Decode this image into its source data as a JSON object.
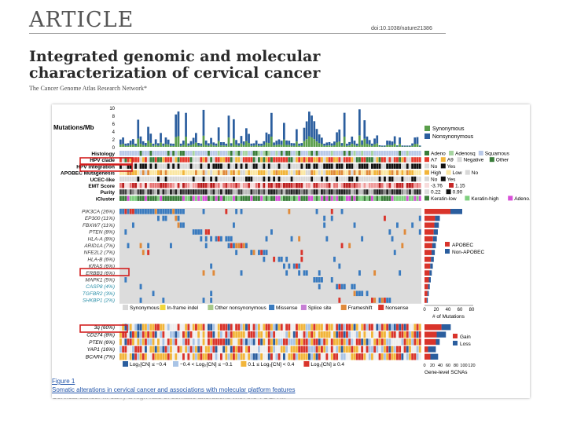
{
  "header": {
    "article_label": "ARTICLE",
    "doi": "doi:10.1038/nature21386",
    "title_line1": "Integrated genomic and molecular",
    "title_line2": "characterization of cervical cancer",
    "authors": "The Cancer Genome Atlas Research Network*"
  },
  "figure": {
    "figure_label": "Figure 1",
    "caption": "Somatic alterations in cervical cancer and associations with molecular platform features",
    "panel_top": {
      "ylabel": "Mutations/Mb",
      "yticks": [
        "10",
        "8",
        "6",
        "4",
        "2",
        "0"
      ],
      "legend": [
        {
          "label": "Synonymous",
          "color": "#5a9e4b"
        },
        {
          "label": "Nonsynonymous",
          "color": "#2b5e9e"
        }
      ]
    },
    "tracks": [
      {
        "label": "Histology",
        "legend": [
          {
            "label": "Adeno",
            "color": "#3a7d3a"
          },
          {
            "label": "Adenosq",
            "color": "#a6d4a0"
          },
          {
            "label": "Squamous",
            "color": "#b9c9e8"
          }
        ]
      },
      {
        "label": "HPV clade",
        "legend": [
          {
            "label": "A7",
            "color": "#e63b2e"
          },
          {
            "label": "A9",
            "color": "#f2b53a"
          },
          {
            "label": "Negative",
            "color": "#d8d8d8"
          },
          {
            "label": "Other",
            "color": "#3a7d3a"
          }
        ]
      },
      {
        "label": "HPV integration",
        "legend": [
          {
            "label": "No",
            "color": "#d8d8d8"
          },
          {
            "label": "Yes",
            "color": "#111111"
          }
        ]
      },
      {
        "label": "APOBEC Mutagenesis",
        "legend": [
          {
            "label": "High",
            "color": "#f2b53a"
          },
          {
            "label": "Low",
            "color": "#fbe7a3"
          },
          {
            "label": "No",
            "color": "#d8d8d8"
          }
        ]
      },
      {
        "label": "UCEC-like",
        "legend": [
          {
            "label": "No",
            "color": "#d8d8d8"
          },
          {
            "label": "Yes",
            "color": "#111111"
          }
        ]
      },
      {
        "label": "EMT Score",
        "legend": [
          {
            "label": "-3.76",
            "color": "#f7dcdc"
          },
          {
            "label": "1.15",
            "color": "#c62828"
          }
        ]
      },
      {
        "label": "Purity",
        "legend": [
          {
            "label": "0.22",
            "color": "#dddddd"
          },
          {
            "label": "0.90",
            "color": "#111111"
          }
        ]
      },
      {
        "label": "iCluster",
        "legend": [
          {
            "label": "Keratin-low",
            "color": "#3a7d3a"
          },
          {
            "label": "Keratin-high",
            "color": "#7fcf7f"
          },
          {
            "label": "Adeno.",
            "color": "#d84fd8"
          }
        ]
      }
    ],
    "genes": [
      {
        "label": "PIK3CA (26%)",
        "color": "#333333"
      },
      {
        "label": "EP300 (11%)",
        "color": "#333333"
      },
      {
        "label": "FBXW7 (11%)",
        "color": "#333333"
      },
      {
        "label": "PTEN (8%)",
        "color": "#333333"
      },
      {
        "label": "HLA-A (8%)",
        "color": "#333333"
      },
      {
        "label": "ARID1A (7%)",
        "color": "#333333"
      },
      {
        "label": "NFE2L2 (7%)",
        "color": "#333333"
      },
      {
        "label": "HLA-B (6%)",
        "color": "#333333"
      },
      {
        "label": "KRAS (6%)",
        "color": "#333333"
      },
      {
        "label": "ERBB3 (6%)",
        "color": "#333333"
      },
      {
        "label": "MAPK1 (5%)",
        "color": "#333333"
      },
      {
        "label": "CASP8 (4%)",
        "color": "#2a8fa8"
      },
      {
        "label": "TGFBR2 (3%)",
        "color": "#2a8fa8"
      },
      {
        "label": "SHKBP1 (2%)",
        "color": "#2a8fa8"
      }
    ],
    "mutation_legend": [
      {
        "label": "Synonymous",
        "color": "#d8d8d8"
      },
      {
        "label": "In-frame indel",
        "color": "#f2d73a"
      },
      {
        "label": "Other nonsynonymous",
        "color": "#a8c98a"
      },
      {
        "label": "Missense",
        "color": "#3a7bbf"
      },
      {
        "label": "Splice site",
        "color": "#c77fd4"
      },
      {
        "label": "Frameshift",
        "color": "#e08a3a"
      },
      {
        "label": "Nonsense",
        "color": "#d9342b"
      }
    ],
    "apobec_legend": [
      {
        "label": "APOBEC",
        "color": "#d9342b"
      },
      {
        "label": "Non-APOBEC",
        "color": "#2b5e9e"
      }
    ],
    "mutation_axis": {
      "ticks": [
        "0",
        "20",
        "40",
        "60",
        "80"
      ],
      "label": "# of Mutations"
    },
    "cn_genes": [
      {
        "label": "3q (60%)"
      },
      {
        "label": "CD274 (8%)"
      },
      {
        "label": "PTEN (6%)"
      },
      {
        "label": "YAP1 (16%)"
      },
      {
        "label": "BCAR4 (7%)"
      }
    ],
    "cn_legend": [
      {
        "label": "Log₂[CN] ≤ −0.4",
        "color": "#2b5e9e"
      },
      {
        "label": "−0.4 < Log₂[CN] ≤ −0.1",
        "color": "#a9c4e6"
      },
      {
        "label": "0.1 ≤ Log₂[CN] < 0.4",
        "color": "#f2b53a"
      },
      {
        "label": "Log₂[CN] ≥ 0.4",
        "color": "#d9342b"
      }
    ],
    "scna_legend": [
      {
        "label": "Gain",
        "color": "#d9342b"
      },
      {
        "label": "Loss",
        "color": "#2b5e9e"
      }
    ],
    "scna_axis": {
      "ticks": [
        "0",
        "20",
        "40",
        "60",
        "80",
        "100",
        "120"
      ],
      "label": "Gene-level SCNAs"
    },
    "background_text": "Cervical cancer ... carry a high rate of somatic alterations with the TCGA ..."
  }
}
